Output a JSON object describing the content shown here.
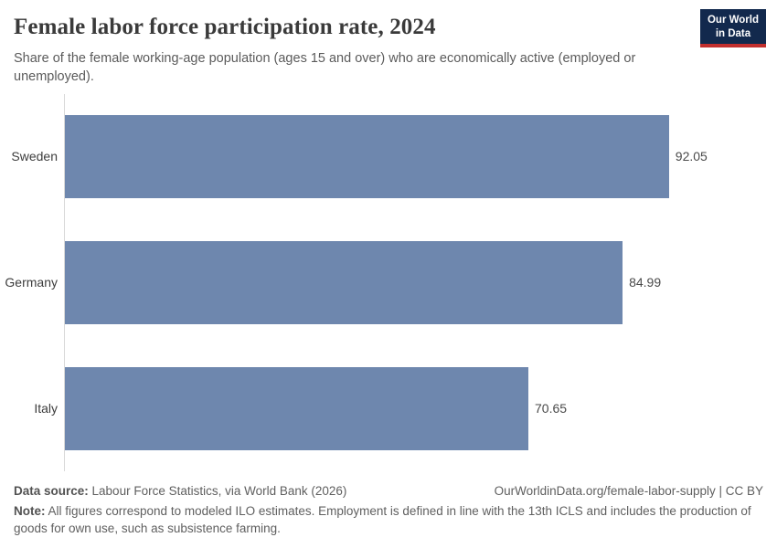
{
  "header": {
    "title": "Female labor force participation rate, 2024",
    "subtitle": "Share of the female working-age population (ages 15 and over) who are economically active (employed or unemployed).",
    "logo": {
      "line1": "Our World",
      "line2": "in Data"
    }
  },
  "chart_data": {
    "type": "bar",
    "orientation": "horizontal",
    "title": "Female labor force participation rate, 2024",
    "categories": [
      "Sweden",
      "Germany",
      "Italy"
    ],
    "values": [
      92.05,
      84.99,
      70.65
    ],
    "value_labels": [
      "92.05",
      "84.99",
      "70.65"
    ],
    "xlabel": "",
    "ylabel": "",
    "xlim": [
      0,
      100
    ],
    "grid": false,
    "legend": false,
    "bar_color": "#6e87ae",
    "axis_color": "#d9d9d9"
  },
  "footer": {
    "datasource_label": "Data source:",
    "datasource_text": " Labour Force Statistics, via World Bank (2026)",
    "attribution": "OurWorldinData.org/female-labor-supply | CC BY",
    "note_label": "Note:",
    "note_text": " All figures correspond to modeled ILO estimates. Employment is defined in line with the 13th ICLS and includes the production of goods for own use, such as subsistence farming."
  },
  "colors": {
    "bar": "#6e87ae",
    "logo_background": "#12294d",
    "logo_stripe": "#c22f2e",
    "title_text": "#3a3a3a",
    "body_text": "#5b5b5b"
  }
}
